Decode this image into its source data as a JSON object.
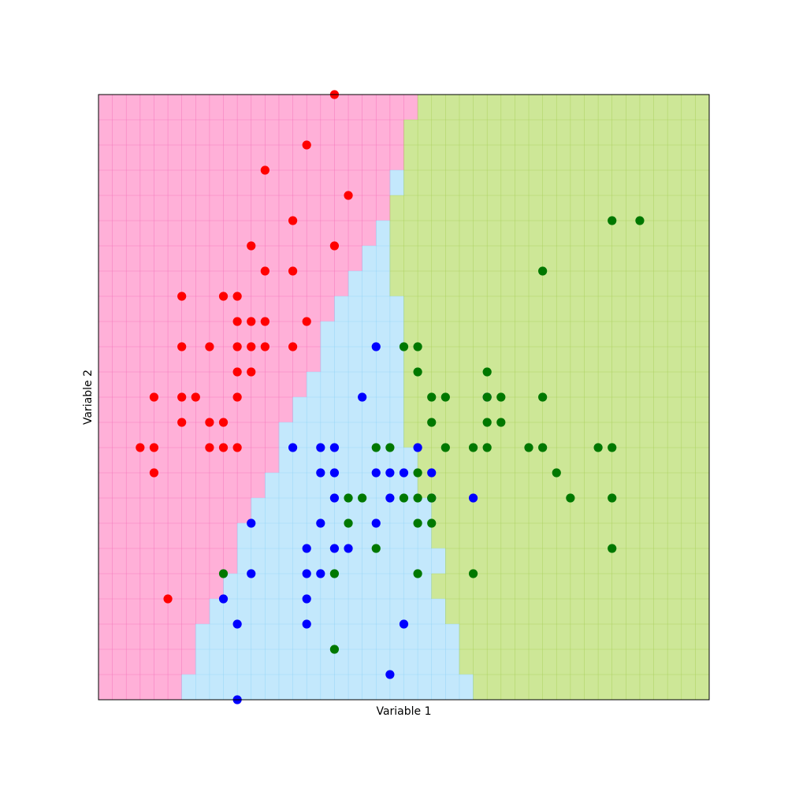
{
  "chart_data": {
    "type": "scatter",
    "title": "",
    "xlabel": "Variable 1",
    "ylabel": "Variable 2",
    "xlim": [
      4.3,
      8.7
    ],
    "ylim": [
      1.9,
      4.3
    ],
    "grid": true,
    "ticks": false,
    "legend": "none",
    "region_step": 0.1,
    "regions": {
      "colors": {
        "red": "#ffb0d8",
        "blue": "#c3e8fc",
        "green": "#cde797"
      },
      "line_colors": {
        "red": "#f36eb8",
        "blue": "#8ed3f6",
        "green": "#a6cf55"
      },
      "rows": [
        {
          "y_from": 1.9,
          "y_to": 2.0,
          "red_to": 4.9,
          "blue_to": 7.0
        },
        {
          "y_from": 2.0,
          "y_to": 2.1,
          "red_to": 5.0,
          "blue_to": 6.9
        },
        {
          "y_from": 2.1,
          "y_to": 2.2,
          "red_to": 5.0,
          "blue_to": 6.9
        },
        {
          "y_from": 2.2,
          "y_to": 2.3,
          "red_to": 5.1,
          "blue_to": 6.8
        },
        {
          "y_from": 2.3,
          "y_to": 2.4,
          "red_to": 5.2,
          "blue_to": 6.7
        },
        {
          "y_from": 2.4,
          "y_to": 2.5,
          "red_to": 5.3,
          "blue_to": 6.8
        },
        {
          "y_from": 2.5,
          "y_to": 2.6,
          "red_to": 5.3,
          "blue_to": 6.7
        },
        {
          "y_from": 2.6,
          "y_to": 2.7,
          "red_to": 5.4,
          "blue_to": 6.7
        },
        {
          "y_from": 2.7,
          "y_to": 2.8,
          "red_to": 5.5,
          "blue_to": 6.6
        },
        {
          "y_from": 2.8,
          "y_to": 2.9,
          "red_to": 5.6,
          "blue_to": 6.6
        },
        {
          "y_from": 2.9,
          "y_to": 3.0,
          "red_to": 5.6,
          "blue_to": 6.5
        },
        {
          "y_from": 3.0,
          "y_to": 3.1,
          "red_to": 5.7,
          "blue_to": 6.5
        },
        {
          "y_from": 3.1,
          "y_to": 3.2,
          "red_to": 5.8,
          "blue_to": 6.5
        },
        {
          "y_from": 3.2,
          "y_to": 3.3,
          "red_to": 5.9,
          "blue_to": 6.5
        },
        {
          "y_from": 3.3,
          "y_to": 3.4,
          "red_to": 5.9,
          "blue_to": 6.5
        },
        {
          "y_from": 3.4,
          "y_to": 3.5,
          "red_to": 6.0,
          "blue_to": 6.5
        },
        {
          "y_from": 3.5,
          "y_to": 3.6,
          "red_to": 6.1,
          "blue_to": 6.4
        },
        {
          "y_from": 3.6,
          "y_to": 3.7,
          "red_to": 6.2,
          "blue_to": 6.4
        },
        {
          "y_from": 3.7,
          "y_to": 3.8,
          "red_to": 6.3,
          "blue_to": 6.4
        },
        {
          "y_from": 3.8,
          "y_to": 3.9,
          "red_to": 6.4,
          "blue_to": 6.4
        },
        {
          "y_from": 3.9,
          "y_to": 4.0,
          "red_to": 6.4,
          "blue_to": 6.5
        },
        {
          "y_from": 4.0,
          "y_to": 4.1,
          "red_to": 6.5,
          "blue_to": 6.5
        },
        {
          "y_from": 4.1,
          "y_to": 4.2,
          "red_to": 6.5,
          "blue_to": 6.5
        },
        {
          "y_from": 4.2,
          "y_to": 4.3,
          "red_to": 6.6,
          "blue_to": 6.6
        }
      ]
    },
    "series": [
      {
        "color": "#ff0000",
        "points": [
          [
            6.0,
            4.3
          ],
          [
            5.8,
            4.1
          ],
          [
            5.5,
            4.0
          ],
          [
            6.1,
            3.9
          ],
          [
            5.7,
            3.8
          ],
          [
            6.0,
            3.7
          ],
          [
            5.4,
            3.7
          ],
          [
            5.5,
            3.6
          ],
          [
            5.7,
            3.6
          ],
          [
            4.9,
            3.5
          ],
          [
            5.2,
            3.5
          ],
          [
            5.3,
            3.5
          ],
          [
            5.3,
            3.4
          ],
          [
            5.4,
            3.4
          ],
          [
            5.5,
            3.4
          ],
          [
            5.8,
            3.4
          ],
          [
            4.9,
            3.3
          ],
          [
            5.1,
            3.3
          ],
          [
            5.3,
            3.3
          ],
          [
            5.4,
            3.3
          ],
          [
            5.5,
            3.3
          ],
          [
            5.7,
            3.3
          ],
          [
            5.3,
            3.2
          ],
          [
            5.4,
            3.2
          ],
          [
            4.7,
            3.1
          ],
          [
            4.9,
            3.1
          ],
          [
            5.0,
            3.1
          ],
          [
            5.3,
            3.1
          ],
          [
            4.9,
            3.0
          ],
          [
            5.1,
            3.0
          ],
          [
            5.2,
            3.0
          ],
          [
            4.6,
            2.9
          ],
          [
            4.7,
            2.9
          ],
          [
            5.1,
            2.9
          ],
          [
            5.2,
            2.9
          ],
          [
            5.3,
            2.9
          ],
          [
            4.7,
            2.8
          ],
          [
            4.8,
            2.3
          ]
        ]
      },
      {
        "color": "#0000ff",
        "points": [
          [
            6.3,
            3.3
          ],
          [
            6.2,
            3.1
          ],
          [
            7.1,
            3.1
          ],
          [
            5.7,
            2.9
          ],
          [
            5.9,
            2.9
          ],
          [
            6.0,
            2.9
          ],
          [
            6.6,
            2.9
          ],
          [
            5.9,
            2.8
          ],
          [
            6.0,
            2.8
          ],
          [
            6.3,
            2.8
          ],
          [
            6.4,
            2.8
          ],
          [
            6.5,
            2.8
          ],
          [
            6.7,
            2.8
          ],
          [
            6.0,
            2.7
          ],
          [
            6.4,
            2.7
          ],
          [
            6.7,
            2.7
          ],
          [
            7.0,
            2.7
          ],
          [
            5.4,
            2.6
          ],
          [
            5.9,
            2.6
          ],
          [
            6.3,
            2.6
          ],
          [
            5.8,
            2.5
          ],
          [
            6.0,
            2.5
          ],
          [
            6.1,
            2.5
          ],
          [
            5.4,
            2.4
          ],
          [
            5.8,
            2.4
          ],
          [
            5.9,
            2.4
          ],
          [
            5.2,
            2.3
          ],
          [
            5.8,
            2.3
          ],
          [
            5.3,
            2.2
          ],
          [
            5.8,
            2.2
          ],
          [
            6.5,
            2.2
          ],
          [
            6.4,
            2.0
          ],
          [
            5.3,
            1.9
          ]
        ]
      },
      {
        "color": "#007800",
        "points": [
          [
            8.0,
            3.8
          ],
          [
            8.2,
            3.8
          ],
          [
            7.5,
            3.6
          ],
          [
            6.5,
            3.3
          ],
          [
            6.6,
            3.3
          ],
          [
            6.6,
            3.2
          ],
          [
            7.1,
            3.2
          ],
          [
            6.7,
            3.1
          ],
          [
            6.8,
            3.1
          ],
          [
            7.1,
            3.1
          ],
          [
            7.2,
            3.1
          ],
          [
            7.5,
            3.1
          ],
          [
            6.7,
            3.0
          ],
          [
            7.1,
            3.0
          ],
          [
            7.2,
            3.0
          ],
          [
            6.3,
            2.9
          ],
          [
            6.4,
            2.9
          ],
          [
            6.8,
            2.9
          ],
          [
            7.0,
            2.9
          ],
          [
            7.1,
            2.9
          ],
          [
            7.4,
            2.9
          ],
          [
            7.5,
            2.9
          ],
          [
            7.9,
            2.9
          ],
          [
            8.0,
            2.9
          ],
          [
            6.6,
            2.8
          ],
          [
            7.6,
            2.8
          ],
          [
            6.1,
            2.7
          ],
          [
            6.2,
            2.7
          ],
          [
            6.5,
            2.7
          ],
          [
            6.6,
            2.7
          ],
          [
            6.7,
            2.7
          ],
          [
            7.7,
            2.7
          ],
          [
            8.0,
            2.7
          ],
          [
            6.1,
            2.6
          ],
          [
            6.6,
            2.6
          ],
          [
            6.7,
            2.6
          ],
          [
            6.3,
            2.5
          ],
          [
            8.0,
            2.5
          ],
          [
            5.2,
            2.4
          ],
          [
            6.0,
            2.4
          ],
          [
            6.6,
            2.4
          ],
          [
            7.0,
            2.4
          ],
          [
            6.0,
            2.1
          ]
        ]
      }
    ]
  }
}
